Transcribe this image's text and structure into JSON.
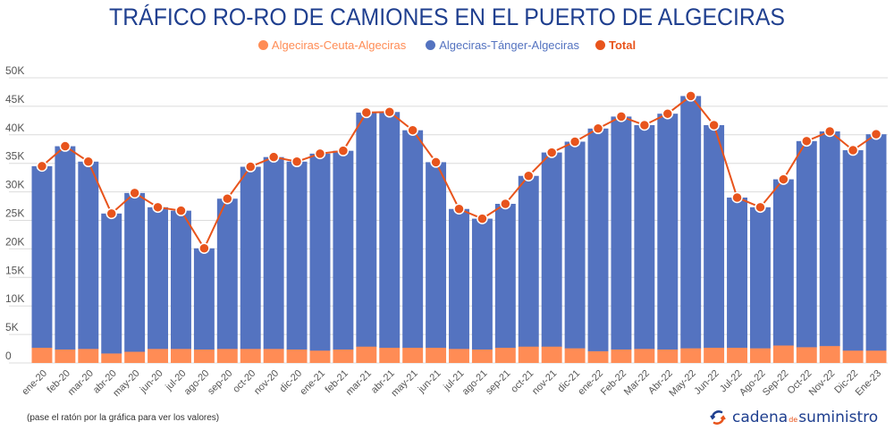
{
  "title": "TRÁFICO RO-RO DE CAMIONES EN EL PUERTO DE ALGECIRAS",
  "footnote": "(pase el ratón por la gráfica para ver los valores)",
  "brand": {
    "part1": "cadena",
    "part2": "de",
    "part3": "suministro",
    "icon": "circular-arrows-icon"
  },
  "colors": {
    "ceuta": "#ff8c55",
    "tanger": "#5473c0",
    "total": "#e8541c",
    "title": "#1f3f8f",
    "grid": "#dcdcdc",
    "axis_text": "#555555"
  },
  "chart_data": {
    "type": "bar",
    "stacked": true,
    "title": "TRÁFICO RO-RO DE CAMIONES EN EL PUERTO DE ALGECIRAS",
    "xlabel": "",
    "ylabel": "",
    "ylim": [
      0,
      50000
    ],
    "yticks": [
      0,
      5000,
      10000,
      15000,
      20000,
      25000,
      30000,
      35000,
      40000,
      45000,
      50000
    ],
    "ytick_labels": [
      "0",
      "5K",
      "10K",
      "15K",
      "20K",
      "25K",
      "30K",
      "35K",
      "40K",
      "45K",
      "50K"
    ],
    "grid": true,
    "legend_position": "top-center",
    "categories": [
      "ene-20",
      "feb-20",
      "mar-20",
      "abr-20",
      "may-20",
      "jun-20",
      "jul-20",
      "ago-20",
      "sep-20",
      "oct-20",
      "nov-20",
      "dic-20",
      "ene-21",
      "feb-21",
      "mar-21",
      "abr-21",
      "may-21",
      "jun-21",
      "jul-21",
      "ago-21",
      "sep-21",
      "oct-21",
      "nov-21",
      "dic-21",
      "ene-22",
      "Feb-22",
      "Mar-22",
      "Abr-22",
      "May-22",
      "Jun-22",
      "Jul-22",
      "Ago-22",
      "Sep-22",
      "Oct-22",
      "Nov-22",
      "Dic-22",
      "Ene-23"
    ],
    "series": [
      {
        "name": "Algeciras-Ceuta-Algeciras",
        "type": "bar",
        "values": [
          2700,
          2400,
          2500,
          1700,
          2000,
          2500,
          2500,
          2400,
          2500,
          2500,
          2500,
          2400,
          2200,
          2400,
          2900,
          2700,
          2700,
          2700,
          2500,
          2400,
          2700,
          2900,
          2900,
          2600,
          2100,
          2400,
          2500,
          2400,
          2600,
          2700,
          2700,
          2600,
          3100,
          2800,
          3000,
          2200,
          2200
        ]
      },
      {
        "name": "Algeciras-Tánger-Algeciras",
        "type": "bar",
        "values": [
          31800,
          35600,
          32800,
          24500,
          27800,
          24800,
          24200,
          17700,
          26300,
          31900,
          33600,
          32900,
          34500,
          34800,
          41000,
          41300,
          38100,
          32500,
          24500,
          22900,
          25200,
          29900,
          34000,
          36200,
          39000,
          40800,
          39200,
          41300,
          44200,
          39000,
          26300,
          24700,
          29100,
          36100,
          37600,
          35100,
          37900
        ]
      },
      {
        "name": "Total",
        "type": "line",
        "values": [
          34500,
          38000,
          35300,
          26200,
          29800,
          27300,
          26700,
          20100,
          28800,
          34400,
          36100,
          35300,
          36700,
          37200,
          43900,
          44000,
          40800,
          35200,
          27000,
          25300,
          27900,
          32800,
          36900,
          38800,
          41100,
          43200,
          41700,
          43700,
          46800,
          41700,
          29000,
          27300,
          32200,
          38900,
          40600,
          37300,
          40100
        ]
      }
    ]
  }
}
